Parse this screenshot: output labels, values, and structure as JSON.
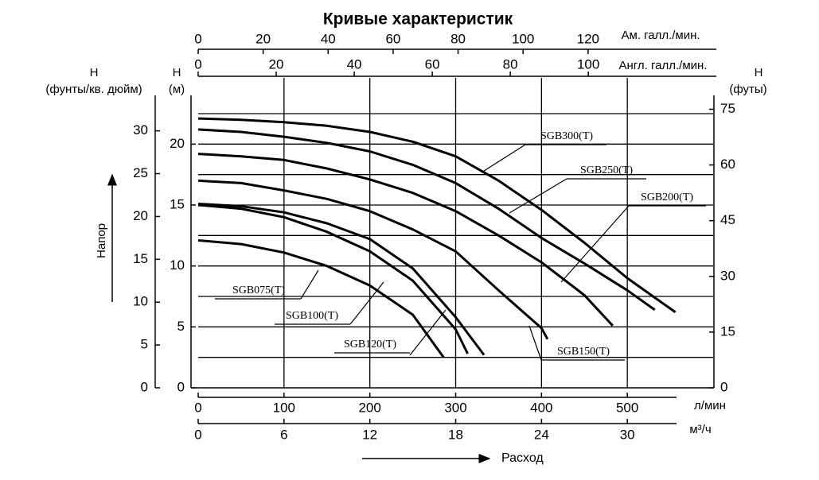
{
  "chart_data": {
    "type": "line",
    "title": "Кривые характеристик",
    "y_title": "Напор",
    "x_title": "Расход",
    "x_axes": [
      {
        "label": "Ам. галл./мин.",
        "lim": [
          0,
          158.5
        ],
        "ticks": [
          0,
          20,
          40,
          60,
          80,
          100,
          120
        ]
      },
      {
        "label": "Англ. галл./мин.",
        "lim": [
          0,
          132
        ],
        "ticks": [
          0,
          20,
          40,
          60,
          80,
          100
        ]
      },
      {
        "label": "л/мин",
        "lim": [
          0,
          600
        ],
        "ticks": [
          0,
          100,
          200,
          300,
          400,
          500
        ]
      },
      {
        "label": "м³/ч",
        "lim": [
          0,
          36
        ],
        "ticks": [
          0,
          6,
          12,
          18,
          24,
          30
        ]
      }
    ],
    "y_axes": [
      {
        "symbol": "Н",
        "unit": "(фунты/кв. дюйм)",
        "lim": [
          0,
          34.14
        ],
        "ticks": [
          0,
          5,
          10,
          15,
          20,
          25,
          30
        ]
      },
      {
        "symbol": "Н",
        "unit": "(м)",
        "lim": [
          0,
          24
        ],
        "ticks": [
          0,
          5,
          10,
          15,
          20
        ]
      },
      {
        "symbol": "Н",
        "unit": "(футы)",
        "lim": [
          0,
          78.74
        ],
        "ticks": [
          0,
          15,
          30,
          45,
          60,
          75
        ]
      }
    ],
    "grid": true,
    "ygrid": [
      2.5,
      5,
      7.5,
      10,
      12.5,
      15,
      17.5,
      20,
      22.5
    ],
    "series": [
      {
        "name": "SGB300(T)",
        "color": "#000000",
        "x": [
          0,
          50,
          100,
          150,
          200,
          250,
          300,
          350,
          400,
          450,
          500,
          556
        ],
        "values": [
          22.1,
          22.0,
          21.8,
          21.5,
          21.0,
          20.2,
          19.0,
          17.0,
          14.6,
          11.9,
          9.0,
          6.2
        ]
      },
      {
        "name": "SGB250(T)",
        "color": "#000000",
        "x": [
          0,
          50,
          100,
          150,
          200,
          250,
          300,
          350,
          400,
          450,
          500,
          532
        ],
        "values": [
          21.2,
          21.0,
          20.6,
          20.1,
          19.4,
          18.3,
          16.8,
          14.7,
          12.3,
          10.2,
          8.0,
          6.4
        ]
      },
      {
        "name": "SGB200(T)",
        "color": "#000000",
        "x": [
          0,
          50,
          100,
          150,
          200,
          250,
          300,
          350,
          400,
          450,
          483
        ],
        "values": [
          19.2,
          19.0,
          18.7,
          18.0,
          17.1,
          16.0,
          14.5,
          12.5,
          10.3,
          7.6,
          5.1
        ]
      },
      {
        "name": "SGB150(T)",
        "color": "#000000",
        "x": [
          0,
          50,
          100,
          150,
          200,
          250,
          300,
          350,
          400,
          407
        ],
        "values": [
          17.0,
          16.8,
          16.2,
          15.5,
          14.5,
          13.0,
          11.2,
          8.0,
          4.9,
          4.0
        ]
      },
      {
        "name": "SGB120(T)",
        "color": "#000000",
        "x": [
          0,
          50,
          100,
          150,
          200,
          250,
          300,
          333
        ],
        "values": [
          15.1,
          14.9,
          14.4,
          13.5,
          12.2,
          9.8,
          5.8,
          2.7
        ]
      },
      {
        "name": "SGB100(T)",
        "color": "#000000",
        "x": [
          0,
          50,
          100,
          150,
          200,
          250,
          300,
          314
        ],
        "values": [
          15.0,
          14.7,
          14.0,
          12.8,
          11.2,
          8.8,
          4.8,
          2.8
        ]
      },
      {
        "name": "SGB075(T)",
        "color": "#000000",
        "x": [
          0,
          50,
          100,
          150,
          200,
          250,
          286
        ],
        "values": [
          12.1,
          11.8,
          11.1,
          10.0,
          8.4,
          6.0,
          2.5
        ]
      }
    ]
  }
}
